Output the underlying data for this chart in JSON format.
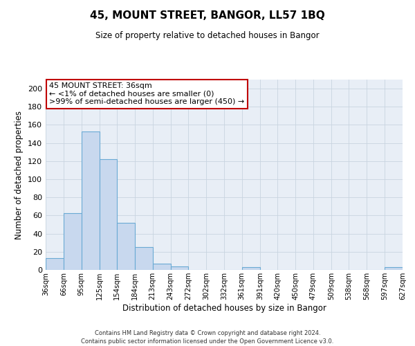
{
  "title": "45, MOUNT STREET, BANGOR, LL57 1BQ",
  "subtitle": "Size of property relative to detached houses in Bangor",
  "xlabel": "Distribution of detached houses by size in Bangor",
  "ylabel": "Number of detached properties",
  "bar_edges": [
    36,
    66,
    95,
    125,
    154,
    184,
    213,
    243,
    272,
    302,
    332,
    361,
    391,
    420,
    450,
    479,
    509,
    538,
    568,
    597,
    627
  ],
  "bar_heights": [
    13,
    63,
    153,
    122,
    52,
    25,
    7,
    4,
    0,
    0,
    0,
    3,
    0,
    0,
    0,
    0,
    0,
    0,
    0,
    3
  ],
  "bar_color": "#c8d8ee",
  "bar_edge_color": "#6aaad4",
  "ylim": [
    0,
    210
  ],
  "yticks": [
    0,
    20,
    40,
    60,
    80,
    100,
    120,
    140,
    160,
    180,
    200
  ],
  "tick_labels": [
    "36sqm",
    "66sqm",
    "95sqm",
    "125sqm",
    "154sqm",
    "184sqm",
    "213sqm",
    "243sqm",
    "272sqm",
    "302sqm",
    "332sqm",
    "361sqm",
    "391sqm",
    "420sqm",
    "450sqm",
    "479sqm",
    "509sqm",
    "538sqm",
    "568sqm",
    "597sqm",
    "627sqm"
  ],
  "annotation_title": "45 MOUNT STREET: 36sqm",
  "annotation_line1": "← <1% of detached houses are smaller (0)",
  "annotation_line2": ">99% of semi-detached houses are larger (450) →",
  "annotation_box_color": "#ffffff",
  "annotation_box_edge_color": "#c00000",
  "footer1": "Contains HM Land Registry data © Crown copyright and database right 2024.",
  "footer2": "Contains public sector information licensed under the Open Government Licence v3.0.",
  "bg_color": "#ffffff",
  "plot_bg_color": "#e8eef6",
  "grid_color": "#c8d4e0"
}
